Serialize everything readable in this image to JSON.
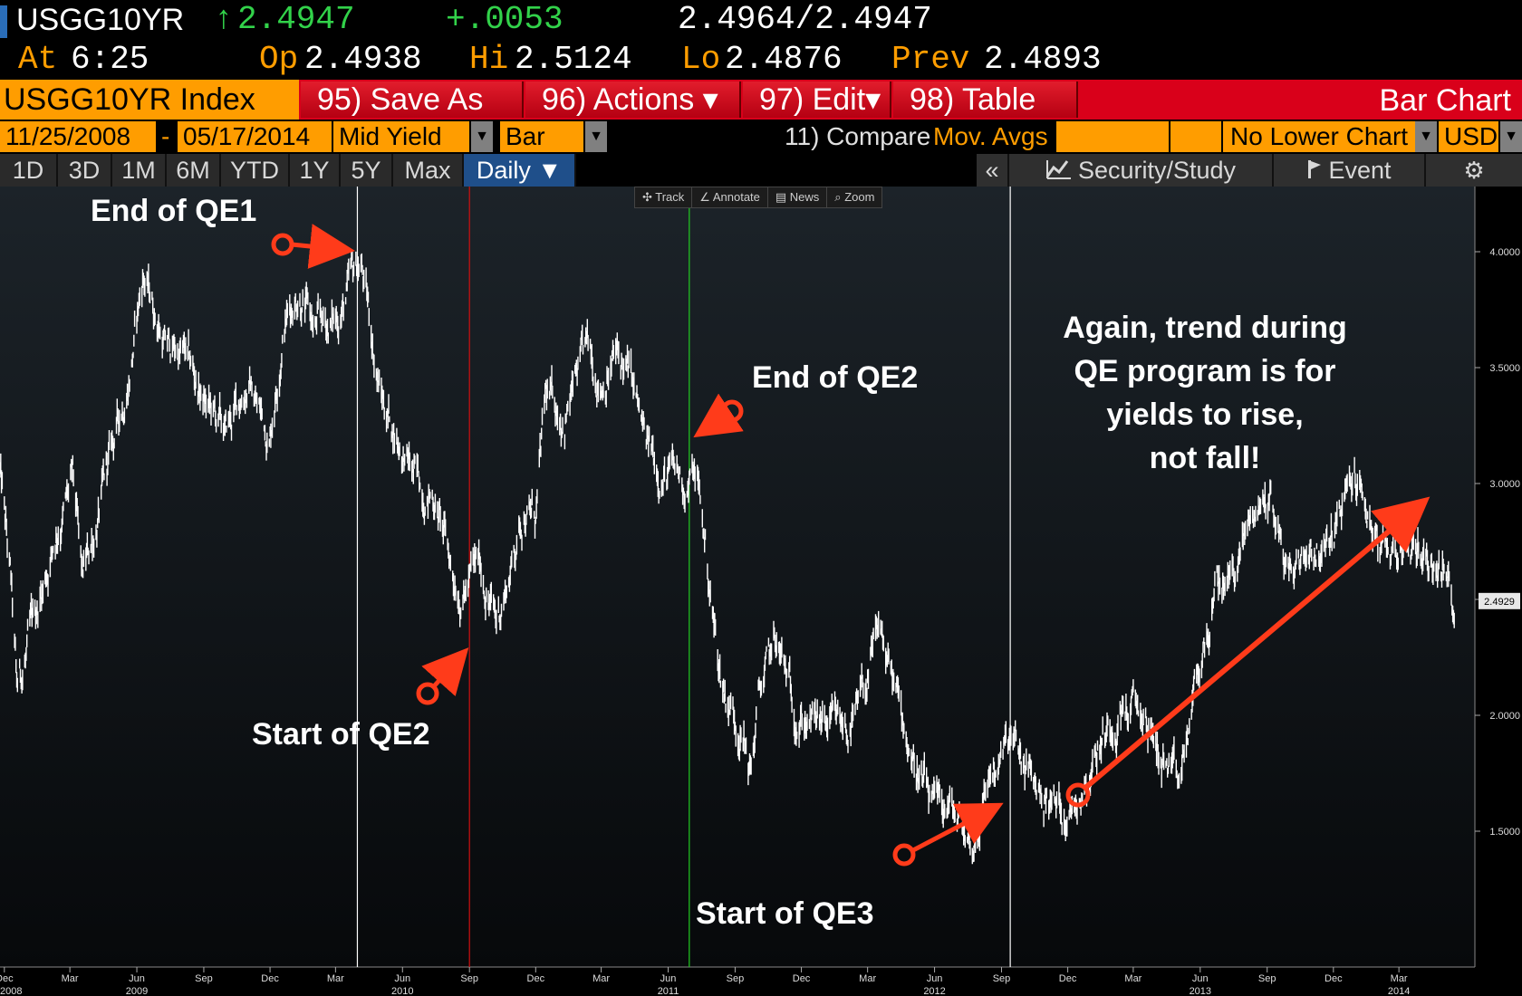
{
  "quote": {
    "ticker": "USGG10YR",
    "arrow": "↑",
    "last": "2.4947",
    "change": "+.0053",
    "bid_ask": "2.4964/2.4947",
    "at_label": "At",
    "time": "6:25",
    "open_label": "Op",
    "open": "2.4938",
    "high_label": "Hi",
    "high": "2.5124",
    "low_label": "Lo",
    "low": "2.4876",
    "prev_label": "Prev",
    "prev": "2.4893"
  },
  "function_bar": {
    "security": "USGG10YR Index",
    "save_as": "95) Save As",
    "actions": "96) Actions ▾",
    "edit": "97) Edit▾",
    "table": "98) Table",
    "title": "Bar Chart"
  },
  "params": {
    "start_date": "11/25/2008",
    "dash": "-",
    "end_date": "05/17/2014",
    "field": "Mid Yield",
    "style": "Bar",
    "compare": "11) Compare",
    "mov_avgs": "Mov. Avgs",
    "lower_chart": "No Lower Chart",
    "currency": "USD",
    "dropdown_glyph": "▼"
  },
  "ranges": {
    "items": [
      "1D",
      "3D",
      "1M",
      "6M",
      "YTD",
      "1Y",
      "5Y",
      "Max"
    ],
    "period": "Daily ▼",
    "collapse": "«",
    "security_study": "Security/Study",
    "event": "Event",
    "gear_glyph": "⚙"
  },
  "toolbar": {
    "track": "✣ Track",
    "annotate": "∠ Annotate",
    "news": "▤ News",
    "zoom": "⌕ Zoom"
  },
  "annotations": {
    "qe1_end": "End of QE1",
    "qe2_start": "Start of QE2",
    "qe2_end": "End of QE2",
    "qe3_start": "Start of QE3",
    "note_lines": [
      "Again, trend during",
      "QE program is for",
      "yields to rise,",
      "not fall!"
    ]
  },
  "colors": {
    "orange": "#ff9d00",
    "green": "#32d24a",
    "red_bar": "#d9001a",
    "arrow": "#ff3b1a",
    "qe2_start_line": "#d01010",
    "qe2_end_line": "#22cc22"
  },
  "chart_data": {
    "type": "bar",
    "title": "",
    "xlabel": "",
    "ylabel": "",
    "ylim": [
      1.2,
      4.25
    ],
    "yticks": [
      "4.0000",
      "3.5000",
      "3.0000",
      "2.5000",
      "2.0000",
      "1.5000"
    ],
    "ytick_values": [
      4.0,
      3.5,
      3.0,
      2.5,
      2.0,
      1.5
    ],
    "last_value_label": "2.4929",
    "last_value": 2.4929,
    "x_start": "2008-11-25",
    "x_end": "2014-05-17",
    "month_ticks": [
      {
        "date": "2008-12-01",
        "label": "Dec"
      },
      {
        "date": "2009-03-01",
        "label": "Mar"
      },
      {
        "date": "2009-06-01",
        "label": "Jun"
      },
      {
        "date": "2009-09-01",
        "label": "Sep"
      },
      {
        "date": "2009-12-01",
        "label": "Dec"
      },
      {
        "date": "2010-03-01",
        "label": "Mar"
      },
      {
        "date": "2010-06-01",
        "label": "Jun"
      },
      {
        "date": "2010-09-01",
        "label": "Sep"
      },
      {
        "date": "2010-12-01",
        "label": "Dec"
      },
      {
        "date": "2011-03-01",
        "label": "Mar"
      },
      {
        "date": "2011-06-01",
        "label": "Jun"
      },
      {
        "date": "2011-09-01",
        "label": "Sep"
      },
      {
        "date": "2011-12-01",
        "label": "Dec"
      },
      {
        "date": "2012-03-01",
        "label": "Mar"
      },
      {
        "date": "2012-06-01",
        "label": "Jun"
      },
      {
        "date": "2012-09-01",
        "label": "Sep"
      },
      {
        "date": "2012-12-01",
        "label": "Dec"
      },
      {
        "date": "2013-03-01",
        "label": "Mar"
      },
      {
        "date": "2013-06-01",
        "label": "Jun"
      },
      {
        "date": "2013-09-01",
        "label": "Sep"
      },
      {
        "date": "2013-12-01",
        "label": "Dec"
      },
      {
        "date": "2014-03-01",
        "label": "Mar"
      }
    ],
    "year_labels": [
      {
        "date": "2008-12-01",
        "label": "2008",
        "anchor": "end"
      },
      {
        "date": "2009-06-01",
        "label": "2009"
      },
      {
        "date": "2010-06-01",
        "label": "2010"
      },
      {
        "date": "2011-06-01",
        "label": "2011"
      },
      {
        "date": "2012-06-01",
        "label": "2012"
      },
      {
        "date": "2013-06-01",
        "label": "2013"
      },
      {
        "date": "2014-03-01",
        "label": "2014"
      }
    ],
    "vertical_lines": [
      {
        "date": "2010-03-31",
        "color": "#ffffff"
      },
      {
        "date": "2010-09-01",
        "color": "#d01010"
      },
      {
        "date": "2011-06-30",
        "color": "#22cc22"
      },
      {
        "date": "2012-09-13",
        "color": "#ffffff"
      }
    ],
    "series": [
      {
        "x": [
          "2008-11-25",
          "2008-12-10",
          "2008-12-18",
          "2009-01-15",
          "2009-02-10",
          "2009-03-05",
          "2009-03-18",
          "2009-04-15",
          "2009-05-20",
          "2009-06-10",
          "2009-07-10",
          "2009-08-05",
          "2009-09-01",
          "2009-10-01",
          "2009-11-01",
          "2009-11-30",
          "2009-12-20",
          "2010-01-10",
          "2010-02-01",
          "2010-03-01",
          "2010-04-05",
          "2010-05-01",
          "2010-05-25",
          "2010-06-20",
          "2010-07-15",
          "2010-08-10",
          "2010-08-25",
          "2010-09-15",
          "2010-10-08",
          "2010-10-25",
          "2010-11-15",
          "2010-12-01",
          "2010-12-15",
          "2011-01-10",
          "2011-02-08",
          "2011-03-01",
          "2011-03-20",
          "2011-04-10",
          "2011-05-01",
          "2011-05-25",
          "2011-06-25",
          "2011-07-10",
          "2011-08-10",
          "2011-08-18",
          "2011-09-10",
          "2011-09-22",
          "2011-10-05",
          "2011-10-27",
          "2011-11-20",
          "2011-12-20",
          "2012-01-20",
          "2012-02-15",
          "2012-03-19",
          "2012-04-15",
          "2012-05-10",
          "2012-06-01",
          "2012-06-20",
          "2012-07-24",
          "2012-08-15",
          "2012-09-14",
          "2012-10-15",
          "2012-11-15",
          "2012-12-05",
          "2013-01-15",
          "2013-02-15",
          "2013-03-11",
          "2013-04-15",
          "2013-05-02",
          "2013-05-25",
          "2013-06-25",
          "2013-07-15",
          "2013-08-10",
          "2013-09-05",
          "2013-10-01",
          "2013-11-01",
          "2013-11-20",
          "2013-12-31",
          "2014-01-25",
          "2014-02-05",
          "2014-03-05",
          "2014-04-05",
          "2014-04-25",
          "2014-05-17"
        ],
        "y": [
          3.05,
          2.55,
          2.08,
          2.45,
          2.8,
          3.0,
          2.55,
          2.95,
          3.45,
          3.9,
          3.6,
          3.55,
          3.35,
          3.2,
          3.45,
          3.2,
          3.7,
          3.85,
          3.65,
          3.7,
          3.95,
          3.4,
          3.2,
          3.0,
          2.95,
          2.6,
          2.55,
          2.65,
          2.4,
          2.6,
          2.9,
          2.85,
          3.35,
          3.3,
          3.55,
          3.45,
          3.55,
          3.45,
          3.15,
          3.05,
          3.0,
          3.05,
          2.2,
          2.1,
          1.95,
          1.75,
          2.1,
          2.3,
          2.05,
          1.95,
          1.92,
          1.98,
          2.35,
          2.0,
          1.75,
          1.55,
          1.6,
          1.43,
          1.75,
          1.87,
          1.7,
          1.6,
          1.6,
          1.9,
          2.05,
          2.0,
          1.78,
          1.65,
          2.1,
          2.55,
          2.6,
          2.85,
          2.95,
          2.6,
          2.75,
          2.7,
          3.02,
          2.8,
          2.65,
          2.75,
          2.7,
          2.65,
          2.49
        ]
      }
    ]
  }
}
